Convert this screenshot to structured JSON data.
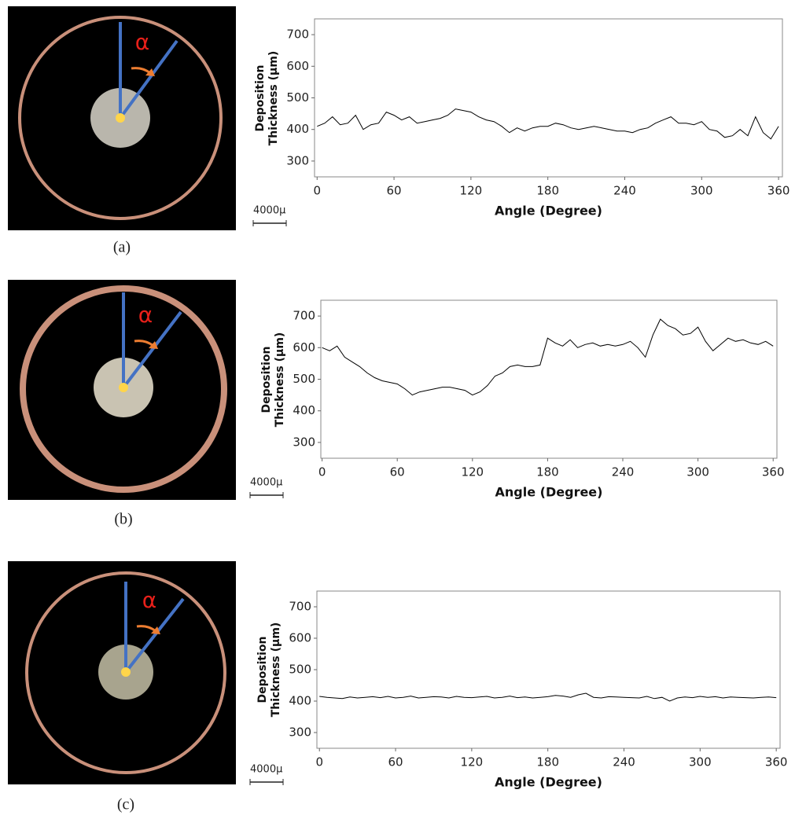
{
  "chart_data": [
    {
      "type": "line",
      "xlabel": "Angle (Degree)",
      "ylabel": "Deposition Thickness (µm)",
      "color": "#000000",
      "xlim": [
        -2,
        363
      ],
      "ylim": [
        250,
        750
      ],
      "xticks": [
        0,
        60,
        120,
        180,
        240,
        300,
        360
      ],
      "yticks": [
        300,
        400,
        500,
        600,
        700
      ],
      "x": [
        0,
        6,
        12,
        18,
        24,
        30,
        36,
        42,
        48,
        54,
        60,
        66,
        72,
        78,
        84,
        90,
        96,
        102,
        108,
        114,
        120,
        126,
        132,
        138,
        144,
        150,
        156,
        162,
        168,
        174,
        180,
        186,
        192,
        198,
        204,
        210,
        216,
        222,
        228,
        234,
        240,
        246,
        252,
        258,
        264,
        270,
        276,
        282,
        288,
        294,
        300,
        306,
        312,
        318,
        324,
        330,
        336,
        342,
        348,
        354,
        360
      ],
      "values": [
        410,
        420,
        440,
        415,
        420,
        445,
        400,
        415,
        420,
        455,
        445,
        430,
        440,
        420,
        425,
        430,
        435,
        445,
        465,
        460,
        455,
        440,
        430,
        425,
        410,
        390,
        405,
        395,
        405,
        410,
        410,
        420,
        415,
        405,
        400,
        405,
        410,
        405,
        400,
        395,
        395,
        390,
        400,
        405,
        420,
        430,
        440,
        420,
        420,
        415,
        425,
        400,
        395,
        375,
        380,
        400,
        380,
        440,
        390,
        370,
        410
      ]
    },
    {
      "type": "line",
      "xlabel": "Angle (Degree)",
      "ylabel": "Deposition Thickness (µm)",
      "color": "#000000",
      "xlim": [
        -1,
        363
      ],
      "ylim": [
        250,
        750
      ],
      "xticks": [
        0,
        60,
        120,
        180,
        240,
        300,
        360
      ],
      "yticks": [
        300,
        400,
        500,
        600,
        700
      ],
      "x": [
        0,
        6,
        12,
        18,
        24,
        30,
        36,
        42,
        48,
        54,
        60,
        66,
        72,
        78,
        84,
        90,
        96,
        102,
        108,
        114,
        120,
        126,
        132,
        138,
        144,
        150,
        156,
        162,
        168,
        174,
        180,
        186,
        192,
        198,
        204,
        210,
        216,
        222,
        228,
        234,
        240,
        246,
        252,
        258,
        264,
        270,
        276,
        282,
        288,
        294,
        300,
        306,
        312,
        318,
        324,
        330,
        336,
        342,
        348,
        354,
        360
      ],
      "values": [
        600,
        590,
        605,
        570,
        555,
        540,
        520,
        505,
        495,
        490,
        485,
        470,
        450,
        460,
        465,
        470,
        475,
        475,
        470,
        465,
        450,
        460,
        480,
        510,
        520,
        540,
        545,
        540,
        540,
        545,
        630,
        615,
        605,
        625,
        600,
        610,
        615,
        605,
        610,
        605,
        610,
        620,
        600,
        570,
        640,
        690,
        670,
        660,
        640,
        645,
        665,
        620,
        590,
        610,
        630,
        620,
        625,
        615,
        610,
        620,
        605
      ]
    },
    {
      "type": "line",
      "xlabel": "Angle (Degree)",
      "ylabel": "Deposition Thickness (µm)",
      "color": "#000000",
      "xlim": [
        -2,
        363
      ],
      "ylim": [
        250,
        750
      ],
      "xticks": [
        0,
        60,
        120,
        180,
        240,
        300,
        360
      ],
      "yticks": [
        300,
        400,
        500,
        600,
        700
      ],
      "x": [
        0,
        6,
        12,
        18,
        24,
        30,
        36,
        42,
        48,
        54,
        60,
        66,
        72,
        78,
        84,
        90,
        96,
        102,
        108,
        114,
        120,
        126,
        132,
        138,
        144,
        150,
        156,
        162,
        168,
        174,
        180,
        186,
        192,
        198,
        204,
        210,
        216,
        222,
        228,
        234,
        240,
        246,
        252,
        258,
        264,
        270,
        276,
        282,
        288,
        294,
        300,
        306,
        312,
        318,
        324,
        330,
        336,
        342,
        348,
        354,
        360
      ],
      "values": [
        415,
        412,
        410,
        408,
        413,
        410,
        412,
        414,
        411,
        415,
        410,
        412,
        416,
        410,
        412,
        414,
        413,
        410,
        415,
        412,
        411,
        413,
        415,
        410,
        412,
        416,
        411,
        413,
        410,
        412,
        414,
        418,
        416,
        412,
        420,
        425,
        412,
        410,
        414,
        413,
        412,
        411,
        410,
        415,
        408,
        412,
        400,
        410,
        413,
        411,
        415,
        412,
        414,
        410,
        413,
        412,
        411,
        410,
        412,
        413,
        411
      ]
    }
  ],
  "panels": [
    {
      "label": "(a)",
      "angle_symbol": "α",
      "scale_bar": "4000µ"
    },
    {
      "label": "(b)",
      "angle_symbol": "α",
      "scale_bar": "4000µ"
    },
    {
      "label": "(c)",
      "angle_symbol": "α",
      "scale_bar": "4000µ"
    }
  ]
}
